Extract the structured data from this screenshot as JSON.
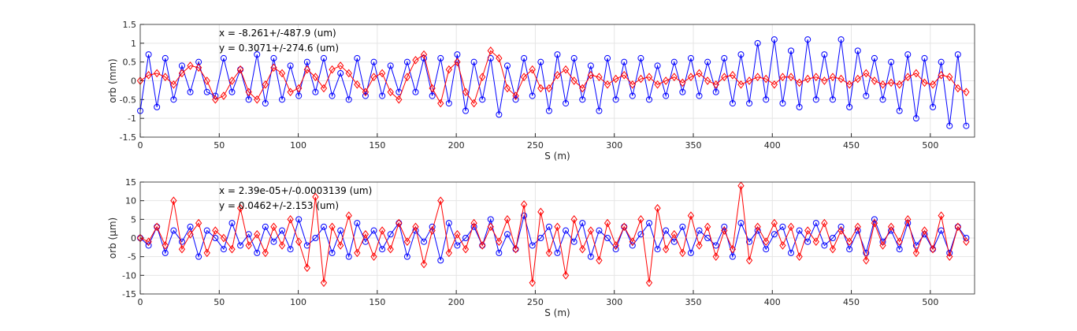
{
  "chart_data": [
    {
      "type": "line",
      "xlabel": "S (m)",
      "ylabel": "orb (mm)",
      "xlim": [
        0,
        528
      ],
      "ylim": [
        -1.5,
        1.5
      ],
      "xticks": [
        0,
        50,
        100,
        150,
        200,
        250,
        300,
        350,
        400,
        450,
        500
      ],
      "yticks": [
        -1.5,
        -1,
        -0.5,
        0,
        0.5,
        1,
        1.5
      ],
      "ytick_labels": [
        "-1.5",
        "-1",
        "-0.5",
        "0",
        "0.5",
        "1",
        "1.5"
      ],
      "grid": true,
      "annotations": [
        "x = -8.261+/-487.9 (um)",
        "y = 0.3071+/-274.6 (um)"
      ],
      "x_step": 5.28,
      "series": [
        {
          "name": "x",
          "color": "#0000ff",
          "marker": "circle",
          "values": [
            -0.8,
            0.7,
            -0.7,
            0.6,
            -0.5,
            0.4,
            -0.3,
            0.5,
            -0.3,
            -0.4,
            0.6,
            -0.3,
            0.3,
            -0.5,
            0.7,
            -0.6,
            0.6,
            -0.5,
            0.4,
            -0.4,
            0.5,
            -0.3,
            0.6,
            -0.4,
            0.2,
            -0.5,
            0.6,
            -0.4,
            0.5,
            -0.4,
            0.4,
            -0.3,
            0.5,
            -0.3,
            0.6,
            -0.4,
            0.6,
            -0.6,
            0.7,
            -0.8,
            0.5,
            -0.5,
            0.6,
            -0.9,
            0.4,
            -0.5,
            0.6,
            -0.4,
            0.5,
            -0.8,
            0.7,
            -0.6,
            0.6,
            -0.5,
            0.4,
            -0.8,
            0.6,
            -0.5,
            0.5,
            -0.4,
            0.6,
            -0.5,
            0.4,
            -0.4,
            0.5,
            -0.3,
            0.6,
            -0.4,
            0.5,
            -0.3,
            0.6,
            -0.6,
            0.7,
            -0.6,
            1.0,
            -0.5,
            1.1,
            -0.6,
            0.8,
            -0.7,
            1.1,
            -0.5,
            0.7,
            -0.5,
            1.1,
            -0.7,
            0.8,
            -0.4,
            0.6,
            -0.5,
            0.5,
            -0.8,
            0.7,
            -1.0,
            0.6,
            -0.7,
            0.5,
            -1.2,
            0.7,
            -1.2
          ]
        },
        {
          "name": "y",
          "color": "#ff0000",
          "marker": "diamond",
          "values": [
            0,
            0.15,
            0.2,
            0.1,
            -0.1,
            0.2,
            0.4,
            0.35,
            0,
            -0.5,
            -0.4,
            0,
            0.3,
            -0.3,
            -0.5,
            -0.1,
            0.35,
            0.2,
            -0.3,
            -0.2,
            0.3,
            0.1,
            -0.2,
            0.3,
            0.4,
            0.2,
            -0.1,
            -0.3,
            0.1,
            0.2,
            -0.3,
            -0.5,
            0.1,
            0.55,
            0.7,
            -0.2,
            -0.6,
            0.3,
            0.5,
            -0.3,
            -0.6,
            0.1,
            0.8,
            0.6,
            -0.2,
            -0.4,
            0.1,
            0.3,
            -0.2,
            -0.2,
            0.15,
            0.3,
            0,
            -0.2,
            0.15,
            0.1,
            -0.1,
            0.05,
            0.15,
            -0.1,
            0.05,
            0.1,
            -0.1,
            0,
            0.1,
            -0.05,
            0.1,
            0.2,
            0,
            -0.1,
            0.1,
            0.15,
            -0.1,
            0,
            0.1,
            0.05,
            -0.1,
            0.1,
            0.1,
            -0.05,
            0.05,
            0.1,
            0,
            0.1,
            0.05,
            -0.1,
            0.05,
            0.2,
            0,
            -0.1,
            -0.05,
            -0.1,
            0.1,
            0.2,
            -0.05,
            -0.1,
            0.15,
            0.1,
            -0.2,
            -0.3
          ]
        }
      ]
    },
    {
      "type": "line",
      "xlabel": "S (m)",
      "ylabel": "orb (μm)",
      "xlim": [
        0,
        528
      ],
      "ylim": [
        -15,
        15
      ],
      "xticks": [
        0,
        50,
        100,
        150,
        200,
        250,
        300,
        350,
        400,
        450,
        500
      ],
      "yticks": [
        -15,
        -10,
        -5,
        0,
        5,
        10,
        15
      ],
      "ytick_labels": [
        "-15",
        "-10",
        "-5",
        "0",
        "5",
        "10",
        "15"
      ],
      "grid": true,
      "annotations": [
        "x = 2.39e-05+/-0.0003139 (um)",
        "y = 0.0462+/-2.153 (um)"
      ],
      "x_step": 5.28,
      "series": [
        {
          "name": "x",
          "color": "#0000ff",
          "marker": "circle",
          "values": [
            0,
            -2,
            3,
            -4,
            2,
            -1,
            3,
            -5,
            2,
            0,
            -3,
            4,
            -2,
            1,
            -4,
            3,
            -1,
            2,
            -3,
            5,
            -2,
            0,
            3,
            -4,
            2,
            -5,
            4,
            -1,
            2,
            -3,
            1,
            4,
            -5,
            2,
            -1,
            3,
            -6,
            4,
            -2,
            0,
            3,
            -2,
            5,
            -4,
            1,
            -3,
            6,
            -2,
            0,
            3,
            -4,
            2,
            -1,
            4,
            -5,
            2,
            0,
            -3,
            3,
            -2,
            1,
            4,
            -3,
            2,
            -1,
            3,
            -4,
            2,
            0,
            -2,
            3,
            -5,
            4,
            -1,
            2,
            -3,
            1,
            3,
            -4,
            2,
            -1,
            4,
            -2,
            0,
            3,
            -3,
            2,
            -4,
            5,
            -1,
            2,
            -3,
            4,
            -2,
            1,
            -3,
            2,
            -4,
            3,
            0
          ]
        },
        {
          "name": "y",
          "color": "#ff0000",
          "marker": "diamond",
          "values": [
            0,
            -1,
            3,
            -2,
            10,
            -3,
            1,
            4,
            -4,
            2,
            0,
            -3,
            8,
            -2,
            1,
            -4,
            3,
            -2,
            5,
            -1,
            -8,
            11,
            -12,
            3,
            -2,
            6,
            -4,
            1,
            -5,
            2,
            -3,
            4,
            -1,
            3,
            -7,
            2,
            10,
            -4,
            1,
            -3,
            4,
            -2,
            3,
            -1,
            5,
            -3,
            9,
            -12,
            7,
            -4,
            3,
            -10,
            5,
            -3,
            2,
            -6,
            4,
            -2,
            3,
            -1,
            5,
            -12,
            8,
            -3,
            1,
            -4,
            6,
            -2,
            3,
            -5,
            2,
            -3,
            14,
            -6,
            3,
            -1,
            4,
            -2,
            3,
            -5,
            2,
            -1,
            4,
            -3,
            2,
            -1,
            3,
            -6,
            4,
            -2,
            3,
            -1,
            5,
            -4,
            2,
            -3,
            6,
            -5,
            3,
            -1
          ]
        }
      ]
    }
  ]
}
